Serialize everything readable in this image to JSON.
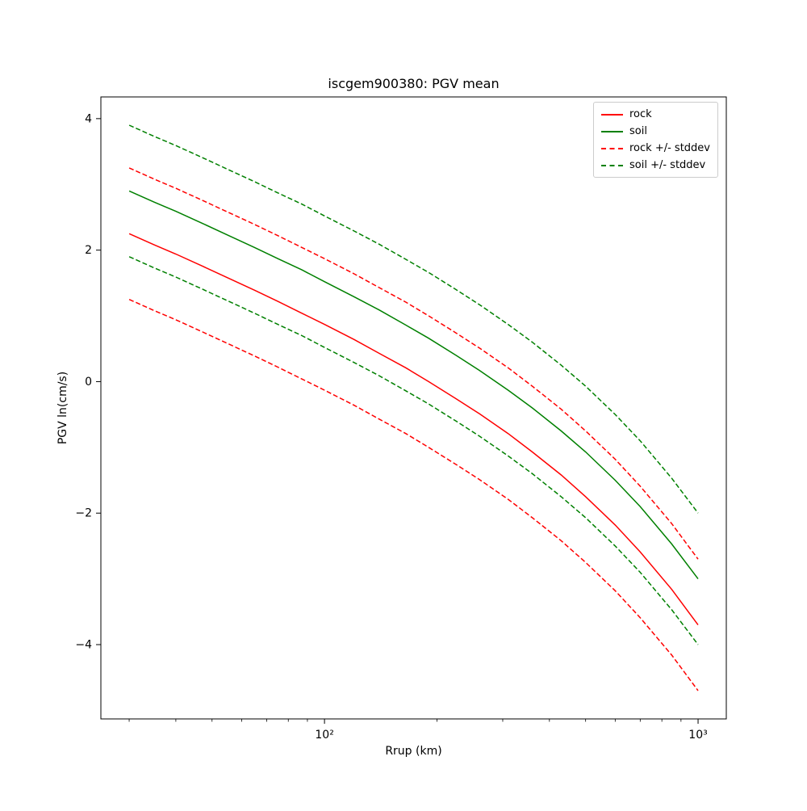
{
  "chart_data": {
    "type": "line",
    "title": "iscgem900380: PGV mean",
    "xlabel": "Rrup (km)",
    "ylabel": "PGV ln(cm/s)",
    "x_scale": "log",
    "y_scale": "linear",
    "xlim": [
      25.2,
      1190
    ],
    "ylim": [
      -5.13,
      4.33
    ],
    "y_ticks": [
      4,
      2,
      0,
      -2,
      -4
    ],
    "x_major_ticks": [
      {
        "value": 100,
        "label": "10²"
      },
      {
        "value": 1000,
        "label": "10³"
      }
    ],
    "x_minor_ticks": [
      30,
      40,
      50,
      60,
      70,
      80,
      90,
      200,
      300,
      400,
      500,
      600,
      700,
      800,
      900
    ],
    "grid": false,
    "stddev": {
      "rock": 1.0,
      "soil": 1.0
    },
    "legend": {
      "position": "upper right",
      "entries": [
        {
          "label": "rock",
          "color": "#ff0000",
          "linestyle": "solid"
        },
        {
          "label": "soil",
          "color": "#008000",
          "linestyle": "solid"
        },
        {
          "label": "rock +/- stddev",
          "color": "#ff0000",
          "linestyle": "dashed"
        },
        {
          "label": "soil +/- stddev",
          "color": "#008000",
          "linestyle": "dashed"
        }
      ]
    },
    "x": [
      30,
      35,
      40,
      47,
      55,
      65,
      75,
      87,
      100,
      120,
      140,
      165,
      190,
      225,
      260,
      310,
      360,
      430,
      500,
      600,
      700,
      850,
      1000
    ],
    "series": [
      {
        "name": "rock",
        "color": "#ff0000",
        "linestyle": "solid",
        "values": [
          2.25,
          2.08,
          1.94,
          1.76,
          1.58,
          1.39,
          1.22,
          1.04,
          0.87,
          0.64,
          0.43,
          0.21,
          0.0,
          -0.26,
          -0.49,
          -0.79,
          -1.07,
          -1.42,
          -1.75,
          -2.18,
          -2.59,
          -3.16,
          -3.7
        ]
      },
      {
        "name": "soil",
        "color": "#008000",
        "linestyle": "solid",
        "values": [
          2.9,
          2.73,
          2.59,
          2.41,
          2.23,
          2.04,
          1.87,
          1.7,
          1.52,
          1.29,
          1.09,
          0.86,
          0.66,
          0.4,
          0.17,
          -0.13,
          -0.4,
          -0.75,
          -1.07,
          -1.5,
          -1.9,
          -2.47,
          -3.0
        ]
      },
      {
        "name": "rock-plus-stddev",
        "color": "#ff0000",
        "linestyle": "dashed",
        "values": [
          3.25,
          3.08,
          2.94,
          2.76,
          2.58,
          2.39,
          2.22,
          2.04,
          1.87,
          1.64,
          1.43,
          1.21,
          1.0,
          0.74,
          0.51,
          0.21,
          -0.07,
          -0.42,
          -0.75,
          -1.18,
          -1.59,
          -2.16,
          -2.7
        ]
      },
      {
        "name": "rock-minus-stddev",
        "color": "#ff0000",
        "linestyle": "dashed",
        "values": [
          1.25,
          1.08,
          0.94,
          0.76,
          0.58,
          0.39,
          0.22,
          0.04,
          -0.13,
          -0.36,
          -0.57,
          -0.79,
          -1.0,
          -1.26,
          -1.49,
          -1.79,
          -2.07,
          -2.42,
          -2.75,
          -3.18,
          -3.59,
          -4.16,
          -4.7
        ]
      },
      {
        "name": "soil-plus-stddev",
        "color": "#008000",
        "linestyle": "dashed",
        "values": [
          3.9,
          3.73,
          3.59,
          3.41,
          3.23,
          3.04,
          2.87,
          2.7,
          2.52,
          2.29,
          2.09,
          1.86,
          1.66,
          1.4,
          1.17,
          0.87,
          0.6,
          0.25,
          -0.07,
          -0.5,
          -0.9,
          -1.47,
          -2.0
        ]
      },
      {
        "name": "soil-minus-stddev",
        "color": "#008000",
        "linestyle": "dashed",
        "values": [
          1.9,
          1.73,
          1.59,
          1.41,
          1.23,
          1.04,
          0.87,
          0.7,
          0.52,
          0.29,
          0.09,
          -0.14,
          -0.34,
          -0.6,
          -0.83,
          -1.13,
          -1.4,
          -1.75,
          -2.07,
          -2.5,
          -2.9,
          -3.47,
          -4.0
        ]
      }
    ]
  }
}
